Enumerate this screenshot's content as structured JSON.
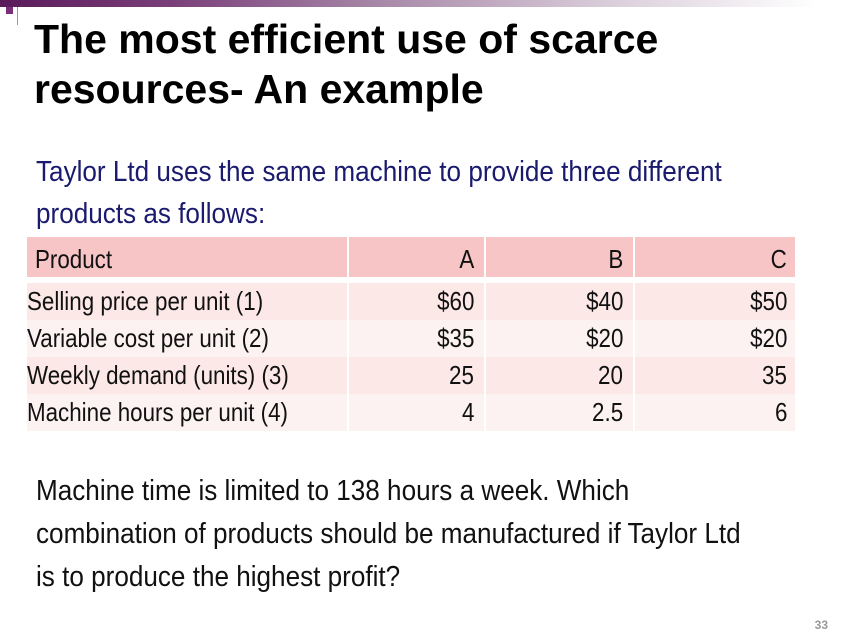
{
  "slide": {
    "title_lines": [
      "The most efficient use of scarce",
      "resources- An example"
    ],
    "intro_lines": [
      "Taylor Ltd uses the same machine to provide three different",
      "products as follows:"
    ],
    "question_lines": [
      "Machine time is limited to 138 hours a week. Which",
      "combination of products should be manufactured if Taylor Ltd",
      "is to produce the highest profit?"
    ],
    "page_number": "33"
  },
  "table": {
    "headers": [
      "Product",
      "A",
      "B",
      "C"
    ],
    "rows": [
      [
        "Selling price per unit (1)",
        "$60",
        "$40",
        "$50"
      ],
      [
        "Variable cost per unit (2)",
        "$35",
        "$20",
        "$20"
      ],
      [
        "Weekly demand (units) (3)",
        "25",
        "20",
        "35"
      ],
      [
        "Machine hours per unit (4)",
        "4",
        "2.5",
        "6"
      ]
    ]
  },
  "colors": {
    "title": "#000000",
    "intro": "#1a1a6e",
    "header_bg": "#f7c5c5",
    "row_bg_odd": "#fde8e8",
    "row_bg_even": "#fdf2f2",
    "accent": "#7a2f7a"
  }
}
